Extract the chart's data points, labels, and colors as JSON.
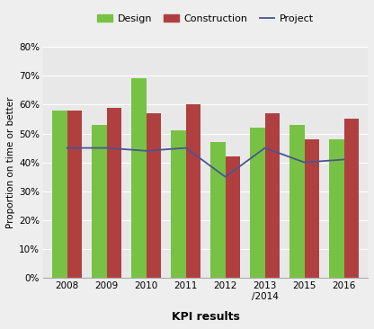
{
  "categories": [
    "2008",
    "2009",
    "2010",
    "2011",
    "2012",
    "2013\n/2014",
    "2015",
    "2016"
  ],
  "design": [
    58,
    53,
    69,
    51,
    47,
    52,
    53,
    48
  ],
  "construction": [
    58,
    59,
    57,
    60,
    42,
    57,
    48,
    55
  ],
  "project": [
    45,
    45,
    44,
    45,
    35,
    45,
    40,
    41
  ],
  "design_color": "#77c244",
  "construction_color": "#b04040",
  "project_color": "#4a5490",
  "ylabel": "Proportion on time or better",
  "xlabel": "KPI results",
  "ylim": [
    0,
    80
  ],
  "yticks": [
    0,
    10,
    20,
    30,
    40,
    50,
    60,
    70,
    80
  ],
  "background_color": "#eeeeee",
  "plot_bg_color": "#e8e8e8",
  "bar_width": 0.38,
  "legend_labels": [
    "Design",
    "Construction",
    "Project"
  ],
  "tick_fontsize": 7.5,
  "ylabel_fontsize": 7.5,
  "xlabel_fontsize": 9
}
